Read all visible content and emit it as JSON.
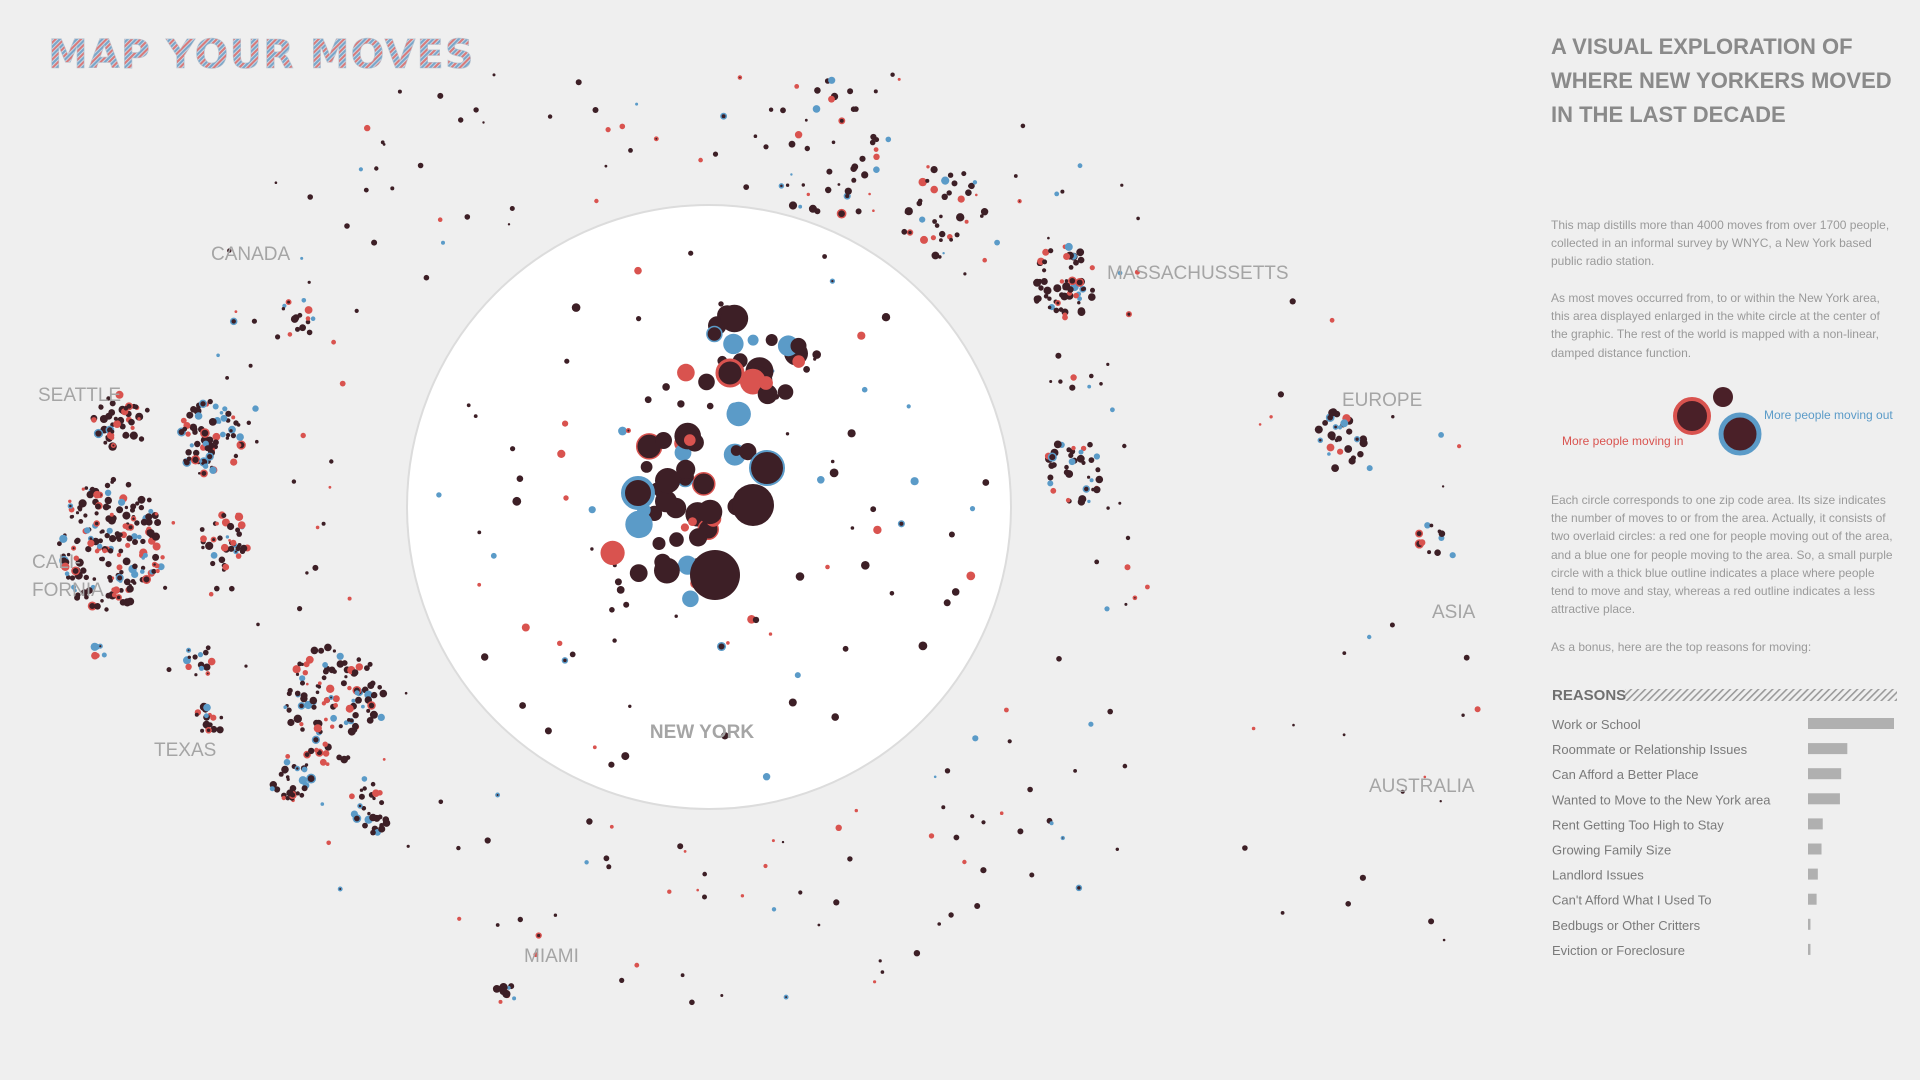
{
  "title": "MAP YOUR MOVES",
  "subtitle": [
    "A VISUAL EXPLORATION OF",
    "WHERE NEW YORKERS MOVED",
    "IN THE LAST DECADE"
  ],
  "paragraphs": [
    "This map distills more than 4000 moves from over 1700 people, collected in an informal survey by WNYC, a New York based public radio station.",
    "As most moves occurred from, to or within the New York area, this area displayed enlarged in the white circle at the center of the graphic. The rest of the world is mapped with a non-linear, damped distance function.",
    "Each circle corresponds to one zip code area. Its size indicates the number of moves to or from the area. Actually, it consists of two overlaid circles: a red one for people moving out of the area, and a blue one for people moving to the area. So, a small purple circle with a thick blue outline indicates a place where people tend to move and stay, whereas a red outline indicates a less attractive place.",
    "As a bonus, here are the top reasons for moving:"
  ],
  "legend": {
    "moving_in": "More people moving in",
    "moving_out": "More people moving out"
  },
  "places": {
    "canada": "CANADA",
    "seattle": "SEATTLE",
    "california_1": "CALI-",
    "california_2": "FORNIA",
    "texas": "TEXAS",
    "miami": "MIAMI",
    "new_york": "NEW YORK",
    "massachussetts": "MASSACHUSSETTS",
    "europe": "EUROPE",
    "asia": "ASIA",
    "australia": "AUSTRALIA"
  },
  "reasons": {
    "title": "REASONS",
    "categories": [
      "Work or School",
      "Roommate or Relationship Issues",
      "Can Afford a Better Place",
      "Wanted to Move to the New York area",
      "Rent Getting Too High to Stay",
      "Growing Family Size",
      "Landlord Issues",
      "Can't Afford What I Used To",
      "Bedbugs or Other Critters",
      "Eviction or Foreclosure"
    ],
    "values": [
      70,
      32,
      27,
      26,
      12,
      11,
      8,
      7,
      2,
      2
    ],
    "color": "#b0b0b0"
  }
}
